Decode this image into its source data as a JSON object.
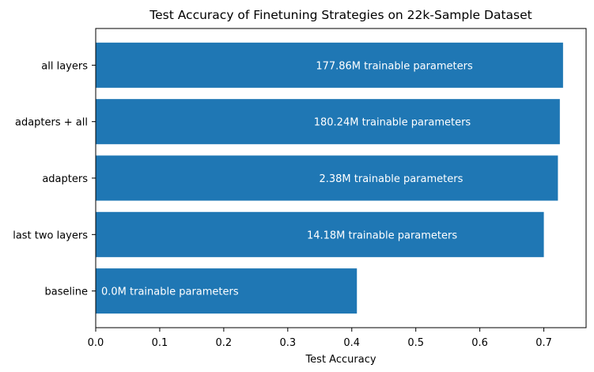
{
  "chart_data": {
    "type": "bar",
    "orientation": "horizontal",
    "title": "Test Accuracy of Finetuning Strategies on 22k-Sample Dataset",
    "xlabel": "Test Accuracy",
    "ylabel": "",
    "xlim": [
      0.0,
      0.766
    ],
    "xticks": [
      "0.0",
      "0.1",
      "0.2",
      "0.3",
      "0.4",
      "0.5",
      "0.6",
      "0.7"
    ],
    "categories": [
      "all layers",
      "adapters + all",
      "adapters",
      "last two layers",
      "baseline"
    ],
    "values": [
      0.73,
      0.725,
      0.722,
      0.7,
      0.408
    ],
    "annotations": [
      "177.86M trainable parameters",
      "180.24M trainable parameters",
      "2.38M trainable parameters",
      "14.18M trainable parameters",
      "0.0M trainable parameters"
    ],
    "bar_color": "#1f77b4",
    "label_color": "#ffffff",
    "grid": false,
    "legend": "none"
  }
}
